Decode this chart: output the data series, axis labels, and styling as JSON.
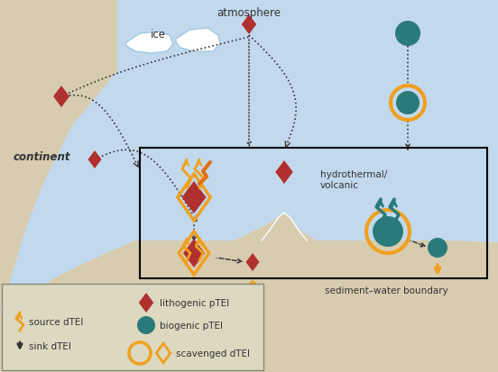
{
  "bg_color": "#e5ddc8",
  "ocean_color": "#c2d9ed",
  "sediment_color": "#d8ccb0",
  "lithogenic_color": "#b03030",
  "biogenic_color": "#2a7a7a",
  "scavenged_color": "#f0a020",
  "arrow_dark": "#333333",
  "text_color": "#333333",
  "legend_bg": "#ddd8c0",
  "atmosphere_text": "atmosphere",
  "ice_text": "ice",
  "continent_text": "continent",
  "hydrothermal_text": "hydrothermal/\nvolcanic",
  "sediment_boundary_text": "sediment–water boundary",
  "source_label": "source dTEI",
  "sink_label": "sink dTEI",
  "lithogenic_label": "lithogenic pTEI",
  "biogenic_label": "biogenic pTEI",
  "scavenged_label": "scavenged dTEI"
}
